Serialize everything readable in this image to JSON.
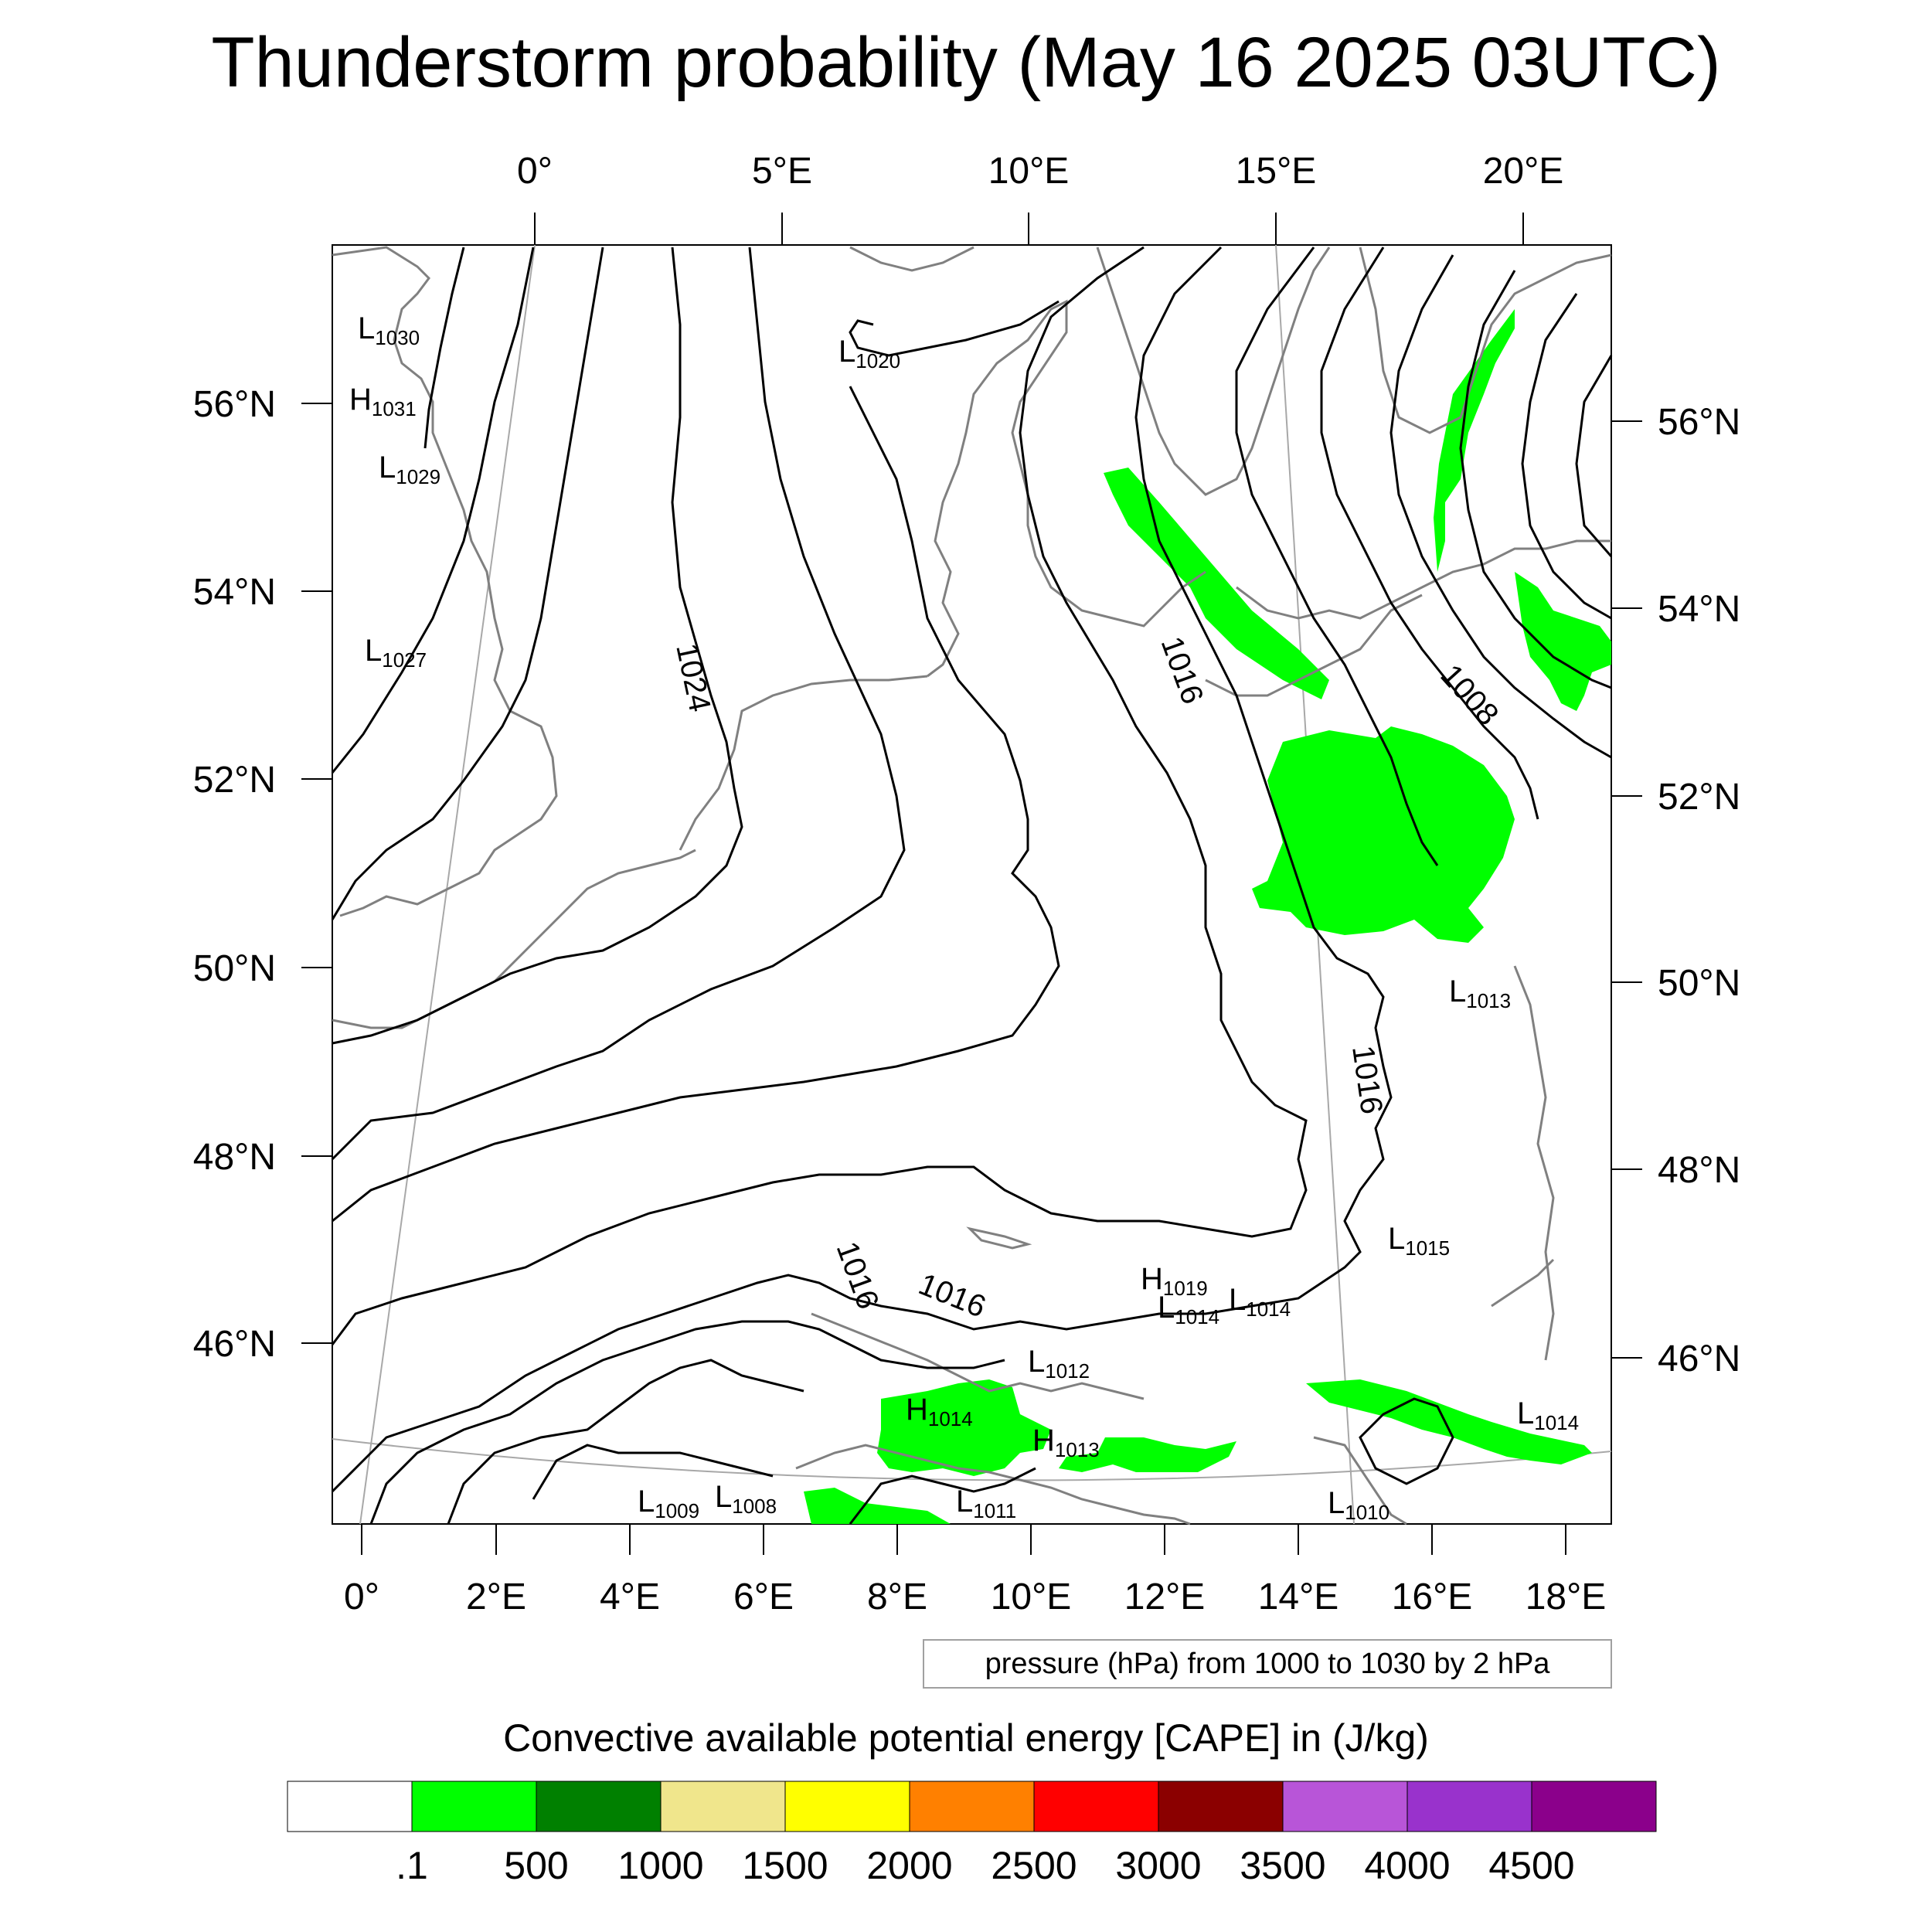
{
  "title": "Thunderstorm probability (May 16 2025 03UTC)",
  "top_lon_labels": [
    "0°",
    "5°E",
    "10°E",
    "15°E",
    "20°E"
  ],
  "bottom_lon_labels": [
    "0°",
    "2°E",
    "4°E",
    "6°E",
    "8°E",
    "10°E",
    "12°E",
    "14°E",
    "16°E",
    "18°E"
  ],
  "left_lat_labels": [
    "56°N",
    "54°N",
    "52°N",
    "50°N",
    "48°N",
    "46°N"
  ],
  "right_lat_labels": [
    "56°N",
    "54°N",
    "52°N",
    "50°N",
    "48°N",
    "46°N"
  ],
  "isobar_labels": [
    "1024",
    "1016",
    "1008",
    "1016",
    "1016",
    "1016"
  ],
  "pressure_centers": [
    {
      "type": "L",
      "value": "1030"
    },
    {
      "type": "H",
      "value": "1031"
    },
    {
      "type": "L",
      "value": "1029"
    },
    {
      "type": "L",
      "value": "1027"
    },
    {
      "type": "L",
      "value": "1020"
    },
    {
      "type": "L",
      "value": "1013"
    },
    {
      "type": "L",
      "value": "1015"
    },
    {
      "type": "H",
      "value": "1019"
    },
    {
      "type": "L",
      "value": "1014"
    },
    {
      "type": "L",
      "value": "1014"
    },
    {
      "type": "L",
      "value": "1012"
    },
    {
      "type": "H",
      "value": "1014"
    },
    {
      "type": "H",
      "value": "1013"
    },
    {
      "type": "L",
      "value": "1014"
    },
    {
      "type": "L",
      "value": "1009"
    },
    {
      "type": "L",
      "value": "1008"
    },
    {
      "type": "L",
      "value": "1011"
    },
    {
      "type": "L",
      "value": "1010"
    }
  ],
  "contour_info": "pressure (hPa) from 1000 to 1030 by 2 hPa",
  "colorbar": {
    "title": "Convective available potential energy [CAPE] in (J/kg)",
    "colors": [
      "#ffffff",
      "#00ff00",
      "#008000",
      "#f0e68c",
      "#ffff00",
      "#ff8000",
      "#ff0000",
      "#8b0000",
      "#b855d8",
      "#9932cc",
      "#8b008b"
    ],
    "labels": [
      ".1",
      "500",
      "1000",
      "1500",
      "2000",
      "2500",
      "3000",
      "3500",
      "4000",
      "4500"
    ]
  },
  "colors": {
    "cape_fill": "#00ff00",
    "coast": "#808080",
    "isobar": "#000000",
    "graticule": "#a0a0a0"
  }
}
